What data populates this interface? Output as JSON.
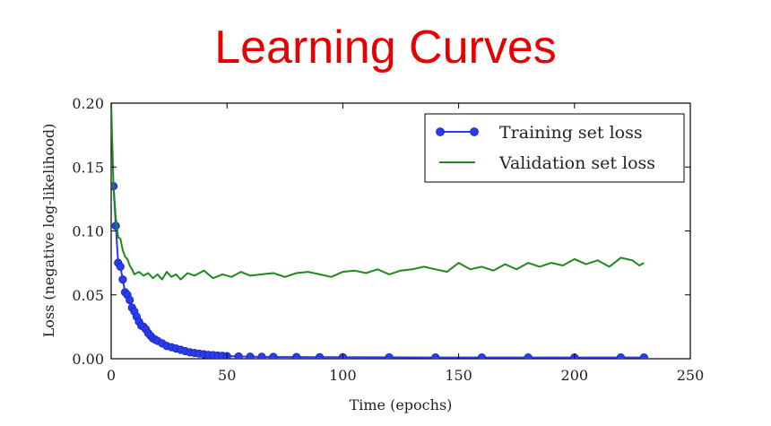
{
  "slide": {
    "title": "Learning Curves"
  },
  "chart_data": {
    "type": "line",
    "title": "",
    "xlabel": "Time (epochs)",
    "ylabel": "Loss (negative log-likelihood)",
    "xlim": [
      0,
      250
    ],
    "ylim": [
      0,
      0.2
    ],
    "xticks": [
      "0",
      "50",
      "100",
      "150",
      "200",
      "250"
    ],
    "yticks": [
      "0.00",
      "0.05",
      "0.10",
      "0.15",
      "0.20"
    ],
    "grid": false,
    "legend": "top-right",
    "series": [
      {
        "name": "Training set loss",
        "color": "#2a3cf0",
        "marker": "circle",
        "x": [
          1,
          2,
          3,
          4,
          5,
          6,
          7,
          8,
          9,
          10,
          11,
          12,
          13,
          14,
          15,
          16,
          17,
          18,
          19,
          20,
          22,
          24,
          26,
          28,
          30,
          32,
          34,
          36,
          38,
          40,
          42,
          44,
          46,
          48,
          50,
          55,
          60,
          65,
          70,
          80,
          90,
          100,
          120,
          140,
          160,
          180,
          200,
          220,
          230
        ],
        "y": [
          0.135,
          0.104,
          0.075,
          0.072,
          0.062,
          0.052,
          0.05,
          0.046,
          0.04,
          0.037,
          0.033,
          0.029,
          0.026,
          0.025,
          0.023,
          0.02,
          0.018,
          0.016,
          0.015,
          0.014,
          0.012,
          0.01,
          0.009,
          0.008,
          0.007,
          0.006,
          0.005,
          0.0045,
          0.004,
          0.0035,
          0.003,
          0.0028,
          0.0025,
          0.0023,
          0.002,
          0.0018,
          0.0016,
          0.0015,
          0.0014,
          0.0013,
          0.0012,
          0.0012,
          0.0011,
          0.001,
          0.001,
          0.001,
          0.001,
          0.001,
          0.001
        ]
      },
      {
        "name": "Validation set loss",
        "color": "#1e8a1e",
        "marker": "none",
        "x": [
          0,
          1,
          2,
          3,
          4,
          5,
          6,
          7,
          8,
          9,
          10,
          12,
          14,
          16,
          18,
          20,
          22,
          24,
          26,
          28,
          30,
          33,
          36,
          40,
          44,
          48,
          52,
          56,
          60,
          65,
          70,
          75,
          80,
          85,
          90,
          95,
          100,
          105,
          110,
          115,
          120,
          125,
          130,
          135,
          140,
          145,
          150,
          155,
          160,
          165,
          170,
          175,
          180,
          185,
          190,
          195,
          200,
          205,
          210,
          215,
          220,
          225,
          228,
          230
        ],
        "y": [
          0.2,
          0.135,
          0.11,
          0.095,
          0.094,
          0.085,
          0.08,
          0.078,
          0.073,
          0.07,
          0.066,
          0.068,
          0.065,
          0.067,
          0.063,
          0.066,
          0.062,
          0.068,
          0.064,
          0.066,
          0.062,
          0.067,
          0.065,
          0.069,
          0.063,
          0.066,
          0.064,
          0.068,
          0.065,
          0.066,
          0.067,
          0.064,
          0.067,
          0.068,
          0.066,
          0.064,
          0.068,
          0.069,
          0.067,
          0.07,
          0.066,
          0.069,
          0.07,
          0.072,
          0.07,
          0.068,
          0.075,
          0.07,
          0.072,
          0.069,
          0.074,
          0.07,
          0.075,
          0.072,
          0.075,
          0.073,
          0.078,
          0.074,
          0.077,
          0.072,
          0.079,
          0.077,
          0.073,
          0.075
        ]
      }
    ]
  }
}
